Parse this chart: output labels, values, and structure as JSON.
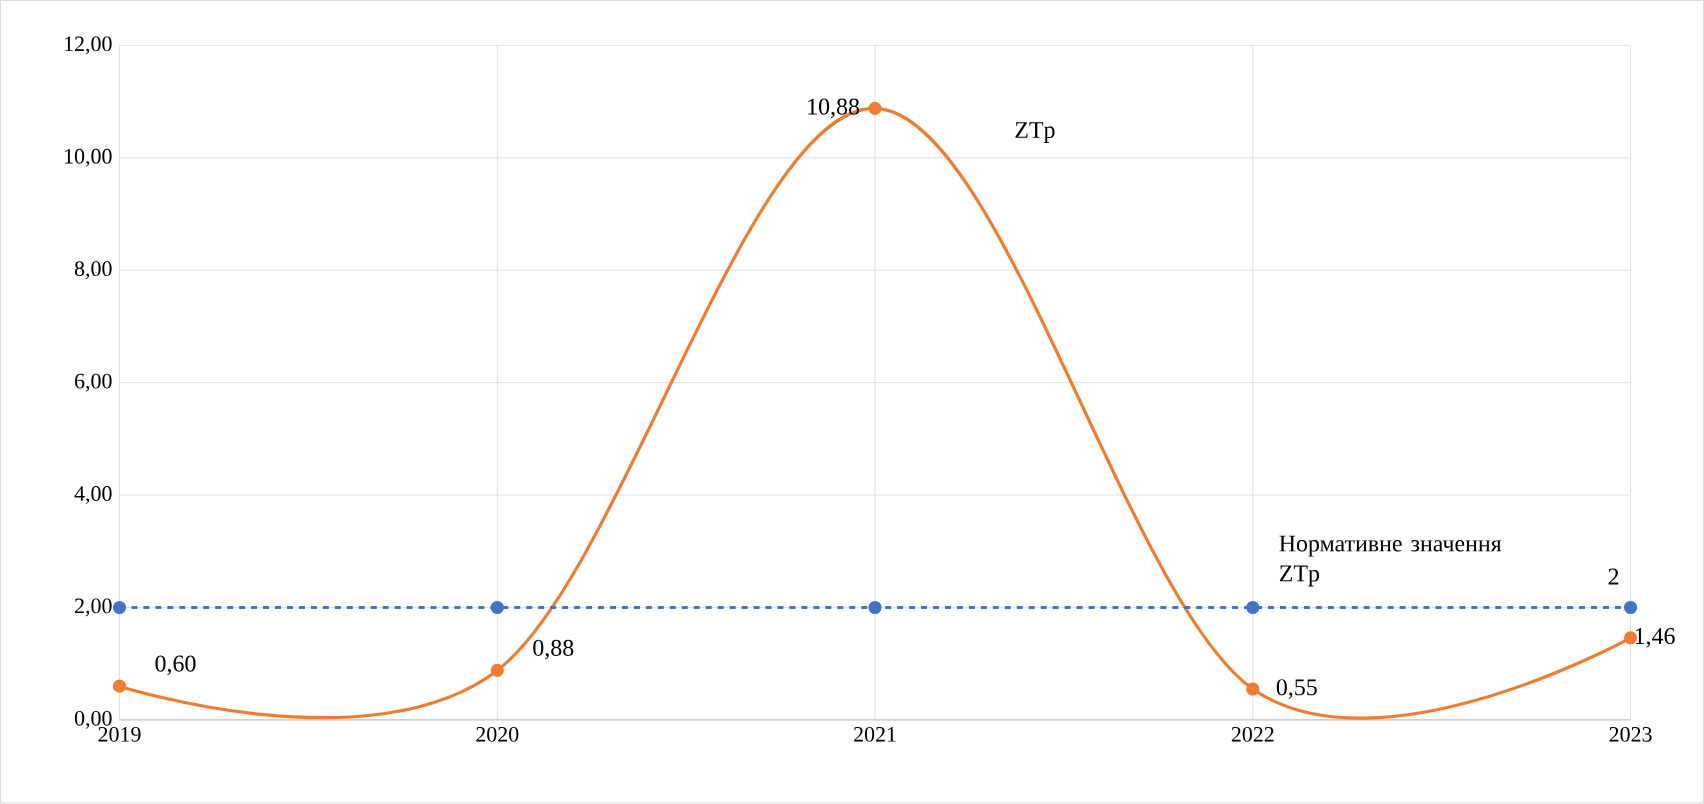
{
  "chart_data": {
    "type": "line",
    "categories": [
      "2019",
      "2020",
      "2021",
      "2022",
      "2023"
    ],
    "series": [
      {
        "name": "ZTp",
        "color": "#ed7d31",
        "values": [
          0.6,
          0.88,
          10.88,
          0.55,
          1.46
        ],
        "line_style": "solid",
        "value_labels": [
          "0,60",
          "0,88",
          "10,88",
          "0,55",
          "1,46"
        ]
      },
      {
        "name": "Нормативне значення ZTp",
        "color": "#4472c4",
        "values": [
          2,
          2,
          2,
          2,
          2
        ],
        "line_style": "dashed",
        "value_labels": [
          null,
          null,
          null,
          null,
          "2"
        ]
      }
    ],
    "ylim": [
      0,
      12
    ],
    "yticks": [
      {
        "value": 0,
        "label": "0,00"
      },
      {
        "value": 2,
        "label": "2,00"
      },
      {
        "value": 4,
        "label": "4,00"
      },
      {
        "value": 6,
        "label": "6,00"
      },
      {
        "value": 8,
        "label": "8,00"
      },
      {
        "value": 10,
        "label": "10,00"
      },
      {
        "value": 12,
        "label": "12,00"
      }
    ],
    "grid": true,
    "legend": false,
    "marker": "circle"
  }
}
